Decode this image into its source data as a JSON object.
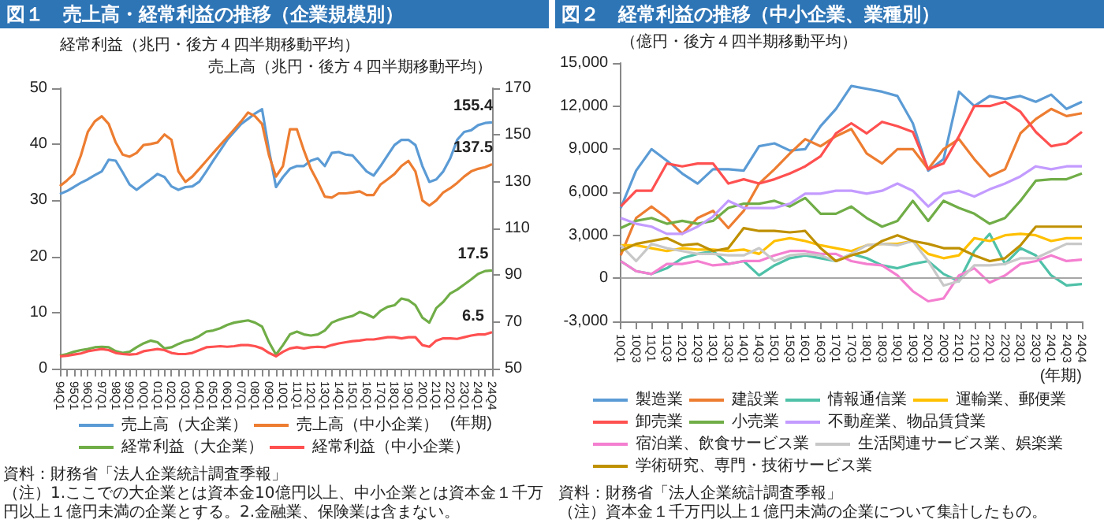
{
  "chart_data": [
    {
      "type": "line",
      "title": "図１　売上高・経常利益の推移（企業規模別）",
      "xlabel": "(年期)",
      "ylabel": "経常利益（兆円・後方４四半期移動平均）",
      "y2label": "売上高（兆円・後方４四半期移動平均）",
      "categories": [
        "94Q1",
        null,
        "95Q1",
        null,
        "96Q1",
        null,
        "97Q1",
        null,
        "98Q1",
        null,
        "99Q1",
        null,
        "00Q1",
        null,
        "01Q1",
        null,
        "02Q1",
        null,
        "03Q1",
        null,
        "04Q1",
        null,
        "05Q1",
        null,
        "06Q1",
        null,
        "07Q1",
        null,
        "08Q1",
        null,
        "09Q1",
        null,
        "10Q1",
        null,
        "11Q1",
        null,
        "12Q1",
        null,
        "13Q1",
        null,
        "14Q1",
        null,
        "15Q1",
        null,
        "16Q1",
        null,
        "17Q1",
        null,
        "18Q1",
        null,
        "19Q1",
        null,
        "20Q1",
        null,
        "21Q1",
        null,
        "22Q1",
        null,
        "23Q1",
        null,
        "24Q1",
        null,
        "24Q4"
      ],
      "series": [
        {
          "name": "売上高（大企業）",
          "color": "#5b9bd5",
          "axis": "y2",
          "values": [
            124.7,
            126,
            127.7,
            129.5,
            131,
            132.8,
            134.4,
            139.4,
            139,
            134,
            128.8,
            126.5,
            128.8,
            131,
            133.3,
            132,
            128,
            126.5,
            127.7,
            128,
            130,
            134.4,
            139,
            143.4,
            147.9,
            151.3,
            154.7,
            156.9,
            159.2,
            161,
            143.4,
            127.7,
            132,
            135.5,
            136.7,
            136.7,
            139,
            140,
            136.7,
            142.3,
            142.7,
            141.6,
            141.2,
            137.8,
            134.4,
            132.6,
            136.7,
            141.2,
            145.7,
            147.9,
            147.9,
            145.7,
            136.7,
            129.9,
            131,
            134.4,
            140,
            147.9,
            151.3,
            152,
            154.2,
            155.1,
            155.4
          ],
          "value_labels": [
            null,
            null,
            null,
            null,
            null,
            null,
            null,
            null,
            null,
            null,
            null,
            null,
            null,
            null,
            null,
            null,
            null,
            null,
            null,
            null,
            null,
            null,
            null,
            null,
            null,
            null,
            null,
            null,
            null,
            null,
            null,
            null,
            null,
            null,
            null,
            null,
            null,
            null,
            null,
            null,
            null,
            null,
            null,
            null,
            null,
            null,
            null,
            null,
            null,
            null,
            null,
            null,
            null,
            null,
            null,
            null,
            null,
            null,
            null,
            null,
            null,
            null,
            "155.4"
          ]
        },
        {
          "name": "売上高（中小企業）",
          "color": "#ed7d31",
          "axis": "y2",
          "values": [
            128.1,
            130.5,
            133.3,
            141.2,
            151.3,
            155.8,
            158,
            154.7,
            146.8,
            141.6,
            140.7,
            142.3,
            145.7,
            146.1,
            146.8,
            150.2,
            147.9,
            134.4,
            129.9,
            132.2,
            135.5,
            138.9,
            142.3,
            145.7,
            149,
            152.4,
            155.8,
            159.6,
            158,
            154.7,
            141.2,
            132.2,
            136.7,
            152.4,
            152.4,
            143.4,
            135.5,
            129.9,
            123.6,
            123.2,
            125,
            125,
            125.4,
            125.9,
            124.3,
            124.3,
            128.8,
            131,
            133.3,
            136.7,
            138.9,
            134.4,
            122,
            119.8,
            122,
            125.4,
            127.2,
            129.5,
            132.2,
            134.4,
            135.5,
            136.2,
            137.5
          ],
          "value_labels": [
            null,
            null,
            null,
            null,
            null,
            null,
            null,
            null,
            null,
            null,
            null,
            null,
            null,
            null,
            null,
            null,
            null,
            null,
            null,
            null,
            null,
            null,
            null,
            null,
            null,
            null,
            null,
            null,
            null,
            null,
            null,
            null,
            null,
            null,
            null,
            null,
            null,
            null,
            null,
            null,
            null,
            null,
            null,
            null,
            null,
            null,
            null,
            null,
            null,
            null,
            null,
            null,
            null,
            null,
            null,
            null,
            null,
            null,
            null,
            null,
            null,
            null,
            "137.5"
          ]
        },
        {
          "name": "経常利益（大企業）",
          "color": "#70ad47",
          "values": [
            2.3,
            2.6,
            3.0,
            3.3,
            3.5,
            3.8,
            3.9,
            3.8,
            3.1,
            2.8,
            3.0,
            3.8,
            4.5,
            5.0,
            4.7,
            3.6,
            3.8,
            4.4,
            4.9,
            5.2,
            5.8,
            6.6,
            6.8,
            7.2,
            7.8,
            8.2,
            8.4,
            8.6,
            8.2,
            7.5,
            4.7,
            2.5,
            4.2,
            6.1,
            6.6,
            6.1,
            5.9,
            6.1,
            6.8,
            8.2,
            8.7,
            9.1,
            9.4,
            10.1,
            9.7,
            9.1,
            10.3,
            11.0,
            11.3,
            12.5,
            12.2,
            11.3,
            9.1,
            8.2,
            10.8,
            11.9,
            13.4,
            14.1,
            15.0,
            15.9,
            16.9,
            17.4,
            17.5
          ],
          "value_labels": [
            null,
            null,
            null,
            null,
            null,
            null,
            null,
            null,
            null,
            null,
            null,
            null,
            null,
            null,
            null,
            null,
            null,
            null,
            null,
            null,
            null,
            null,
            null,
            null,
            null,
            null,
            null,
            null,
            null,
            null,
            null,
            null,
            null,
            null,
            null,
            null,
            null,
            null,
            null,
            null,
            null,
            null,
            null,
            null,
            null,
            null,
            null,
            null,
            null,
            null,
            null,
            null,
            null,
            null,
            null,
            null,
            null,
            null,
            null,
            null,
            null,
            null,
            "17.5"
          ]
        },
        {
          "name": "経常利益（中小企業）",
          "color": "#ff5050",
          "values": [
            2.2,
            2.3,
            2.5,
            2.7,
            3.1,
            3.3,
            3.5,
            3.3,
            2.8,
            2.6,
            2.5,
            2.6,
            3.1,
            3.3,
            3.5,
            3.3,
            2.8,
            2.6,
            2.6,
            2.8,
            3.3,
            3.8,
            3.9,
            4.0,
            3.9,
            4.0,
            4.2,
            4.2,
            4.0,
            3.6,
            2.8,
            2.2,
            3.0,
            3.6,
            3.8,
            3.6,
            3.8,
            3.9,
            3.8,
            4.2,
            4.5,
            4.7,
            4.9,
            5.0,
            5.2,
            5.2,
            5.4,
            5.6,
            5.6,
            5.4,
            5.6,
            5.6,
            4.2,
            3.9,
            5.0,
            5.4,
            5.4,
            5.3,
            5.6,
            5.9,
            6.1,
            6.1,
            6.5
          ],
          "value_labels": [
            null,
            null,
            null,
            null,
            null,
            null,
            null,
            null,
            null,
            null,
            null,
            null,
            null,
            null,
            null,
            null,
            null,
            null,
            null,
            null,
            null,
            null,
            null,
            null,
            null,
            null,
            null,
            null,
            null,
            null,
            null,
            null,
            null,
            null,
            null,
            null,
            null,
            null,
            null,
            null,
            null,
            null,
            null,
            null,
            null,
            null,
            null,
            null,
            null,
            null,
            null,
            null,
            null,
            null,
            null,
            null,
            null,
            null,
            null,
            null,
            null,
            null,
            "6.5"
          ]
        }
      ],
      "ylim": [
        0,
        50
      ],
      "yticks": [
        0,
        10,
        20,
        30,
        40,
        50
      ],
      "y2lim": [
        50,
        170
      ],
      "y2ticks": [
        50,
        70,
        90,
        110,
        130,
        150,
        170
      ],
      "legend": "bottom",
      "annotations": [
        "資料：財務省「法人企業統計調査季報」",
        "（注）1.ここでの大企業とは資本金10億円以上、中小企業とは資本金１千万円以上１億円未満の企業とする。2.金融業、保険業は含まない。"
      ]
    },
    {
      "type": "line",
      "title": "図２　経常利益の推移（中小企業、業種別）",
      "xlabel": "(年期)",
      "ylabel": "（億円・後方４四半期移動平均）",
      "categories": [
        "10Q1",
        "10Q3",
        "11Q1",
        "11Q3",
        "12Q1",
        "12Q3",
        "13Q1",
        "13Q3",
        "14Q1",
        "14Q3",
        "15Q1",
        "15Q3",
        "16Q1",
        "16Q3",
        "17Q1",
        "17Q3",
        "18Q1",
        "18Q3",
        "19Q1",
        "19Q3",
        "20Q1",
        "20Q3",
        "21Q1",
        "21Q3",
        "22Q1",
        "22Q3",
        "23Q1",
        "23Q3",
        "24Q1",
        "24Q3",
        "24Q4"
      ],
      "series": [
        {
          "name": "製造業",
          "color": "#5b9bd5",
          "values": [
            4900,
            7500,
            9000,
            8200,
            7300,
            6600,
            7600,
            7600,
            7500,
            9200,
            9400,
            8900,
            9000,
            10600,
            11800,
            13400,
            13200,
            13000,
            12700,
            10800,
            7500,
            8300,
            13000,
            12000,
            12700,
            12500,
            12700,
            12300,
            12800,
            11800,
            12300
          ]
        },
        {
          "name": "建設業",
          "color": "#ed7d31",
          "values": [
            1600,
            4200,
            5000,
            4200,
            3100,
            4200,
            4700,
            3500,
            4700,
            6600,
            7600,
            8700,
            9700,
            9200,
            9900,
            10400,
            8700,
            8000,
            9000,
            9000,
            7600,
            9000,
            9700,
            8300,
            7100,
            7600,
            10100,
            11100,
            11800,
            11300,
            11500
          ]
        },
        {
          "name": "情報通信業",
          "color": "#4fc1a8",
          "values": [
            1200,
            500,
            300,
            700,
            1400,
            1700,
            1900,
            1000,
            1200,
            200,
            900,
            1400,
            1600,
            1400,
            1200,
            1700,
            1400,
            900,
            700,
            1000,
            1200,
            300,
            -200,
            1900,
            3100,
            1000,
            2100,
            1600,
            200,
            -500,
            -400
          ]
        },
        {
          "name": "運輸業、郵便業",
          "color": "#ffc000",
          "values": [
            2300,
            2300,
            2100,
            1900,
            2100,
            2000,
            2000,
            1900,
            2000,
            1700,
            2600,
            2800,
            2600,
            2300,
            2100,
            1900,
            2300,
            2400,
            2400,
            2600,
            1700,
            1400,
            1600,
            2800,
            2600,
            3000,
            3100,
            3000,
            2600,
            2800,
            2800
          ]
        },
        {
          "name": "卸売業",
          "color": "#ff5050",
          "values": [
            5000,
            6100,
            6100,
            8000,
            7800,
            8000,
            8000,
            6600,
            6900,
            6600,
            6900,
            7300,
            7800,
            8500,
            10100,
            10800,
            10100,
            10900,
            10600,
            10200,
            7600,
            8000,
            9900,
            12000,
            12000,
            12300,
            11600,
            10200,
            9200,
            9400,
            10200
          ]
        },
        {
          "name": "小売業",
          "color": "#70ad47",
          "values": [
            3500,
            4000,
            4200,
            3800,
            4000,
            3800,
            4000,
            4900,
            5200,
            5200,
            5400,
            5000,
            5600,
            4500,
            4500,
            5000,
            4200,
            3600,
            4000,
            5400,
            4000,
            5400,
            4900,
            4500,
            3800,
            4200,
            5400,
            6800,
            6900,
            6900,
            7300
          ]
        },
        {
          "name": "不動産業、物品賃貸業",
          "color": "#c39bff",
          "values": [
            4200,
            3800,
            3600,
            3100,
            3100,
            3600,
            4300,
            5400,
            4900,
            4900,
            4900,
            5200,
            5900,
            5900,
            6100,
            6100,
            5900,
            6100,
            6600,
            6100,
            5000,
            5900,
            6100,
            5700,
            6200,
            6600,
            7100,
            7800,
            7600,
            7800,
            7800
          ]
        },
        {
          "name": "宿泊業、飲食サービス業",
          "color": "#f47fd0",
          "values": [
            1200,
            500,
            300,
            1000,
            1000,
            1200,
            900,
            1000,
            1200,
            1200,
            1600,
            1900,
            1900,
            1700,
            1700,
            1200,
            1000,
            900,
            200,
            -900,
            -1600,
            -1400,
            200,
            700,
            -300,
            200,
            1000,
            1200,
            1600,
            1200,
            1300
          ]
        },
        {
          "name": "生活関連サービス業、娯楽業",
          "color": "#c8c8c8",
          "values": [
            2300,
            1200,
            2400,
            2100,
            1900,
            1700,
            1700,
            1600,
            1600,
            2100,
            1200,
            1600,
            1700,
            1600,
            1200,
            1700,
            2300,
            2400,
            2300,
            2600,
            1200,
            -500,
            -200,
            900,
            900,
            1000,
            1400,
            1400,
            1900,
            2400,
            2400
          ]
        },
        {
          "name": "学術研究、専門・技術サービス業",
          "color": "#bf9000",
          "values": [
            1900,
            2400,
            2600,
            2800,
            2300,
            2400,
            1900,
            2100,
            3500,
            3300,
            3300,
            3200,
            3300,
            2100,
            1200,
            1600,
            1900,
            2600,
            3000,
            2600,
            2400,
            2100,
            2100,
            1600,
            1200,
            1400,
            2300,
            3600,
            3600,
            3600,
            3600
          ]
        }
      ],
      "ylim": [
        -3000,
        15000
      ],
      "yticks": [
        {
          "value": -3000,
          "label": "-3,000"
        },
        {
          "value": 0,
          "label": "0"
        },
        {
          "value": 3000,
          "label": "3,000"
        },
        {
          "value": 6000,
          "label": "6,000"
        },
        {
          "value": 9000,
          "label": "9,000"
        },
        {
          "value": 12000,
          "label": "12,000"
        },
        {
          "value": 15000,
          "label": "15,000"
        }
      ],
      "ref_lines": [
        {
          "axis": "y",
          "value": 0,
          "color": "#a6a6a6"
        }
      ],
      "legend": "bottom",
      "annotations": [
        "資料：財務省「法人企業統計調査季報」",
        "（注）資本金１千万円以上１億円未満の企業について集計したもの。"
      ]
    }
  ]
}
